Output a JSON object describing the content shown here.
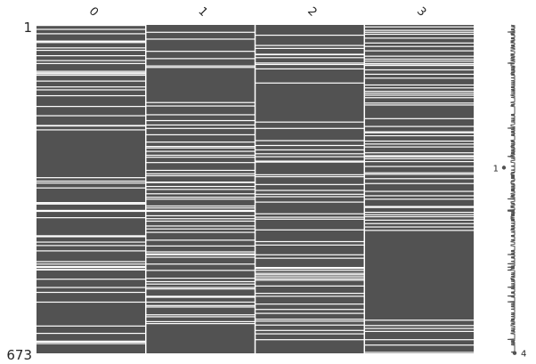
{
  "chart_data": {
    "type": "heatmap",
    "kind": "missing-value matrix",
    "title": "",
    "columns": [
      "0",
      "1",
      "2",
      "3"
    ],
    "row_count": 673,
    "row_labels": {
      "first": "1",
      "last": "673"
    },
    "colors": {
      "present": "#525252",
      "missing": "#ffffff",
      "background": "#ffffff",
      "text": "#262626"
    },
    "missing_rows": [
      [
        1,
        9,
        18,
        33,
        34,
        36,
        47,
        52,
        63,
        73,
        79,
        95,
        98,
        100,
        103,
        115,
        127,
        133,
        145,
        167,
        186,
        206,
        207,
        215,
        313,
        320,
        324,
        334,
        364,
        365,
        367,
        380,
        382,
        395,
        432,
        434,
        445,
        452,
        463,
        485,
        490,
        495,
        497,
        501,
        502,
        521,
        538,
        548,
        568,
        617,
        632,
        648,
        650,
        653
      ],
      [
        15,
        29,
        54,
        69,
        84,
        87,
        159,
        166,
        184,
        196,
        205,
        212,
        225,
        240,
        249,
        252,
        259,
        267,
        271,
        282,
        298,
        305,
        309,
        322,
        323,
        331,
        337,
        346,
        353,
        357,
        371,
        375,
        380,
        382,
        391,
        397,
        402,
        412,
        418,
        425,
        441,
        453,
        465,
        469,
        471,
        476,
        490,
        503,
        519,
        526,
        531,
        538,
        541,
        556,
        558,
        568,
        575,
        578,
        594,
        598,
        608,
        612
      ],
      [
        21,
        42,
        48,
        60,
        61,
        67,
        78,
        81,
        90,
        119,
        199,
        212,
        237,
        247,
        256,
        264,
        270,
        279,
        281,
        307,
        311,
        327,
        339,
        347,
        352,
        363,
        387,
        394,
        398,
        420,
        444,
        451,
        471,
        478,
        497,
        499,
        503,
        509,
        512,
        516,
        520,
        523,
        535,
        550,
        556,
        572,
        583,
        591,
        603,
        607,
        615,
        626,
        633,
        645
      ],
      [
        4,
        11,
        15,
        19,
        27,
        37,
        44,
        53,
        64,
        70,
        74,
        79,
        82,
        83,
        92,
        101,
        109,
        123,
        129,
        136,
        140,
        144,
        149,
        160,
        164,
        192,
        208,
        219,
        221,
        227,
        238,
        244,
        250,
        262,
        268,
        270,
        274,
        280,
        290,
        303,
        306,
        315,
        325,
        341,
        350,
        357,
        372,
        374,
        384,
        389,
        393,
        400,
        407,
        414,
        421,
        605,
        616,
        622,
        628,
        645,
        656,
        671
      ]
    ],
    "sparkline": {
      "min_label": "1",
      "max_label": "4",
      "min_row": 293,
      "max_row": 673
    }
  }
}
